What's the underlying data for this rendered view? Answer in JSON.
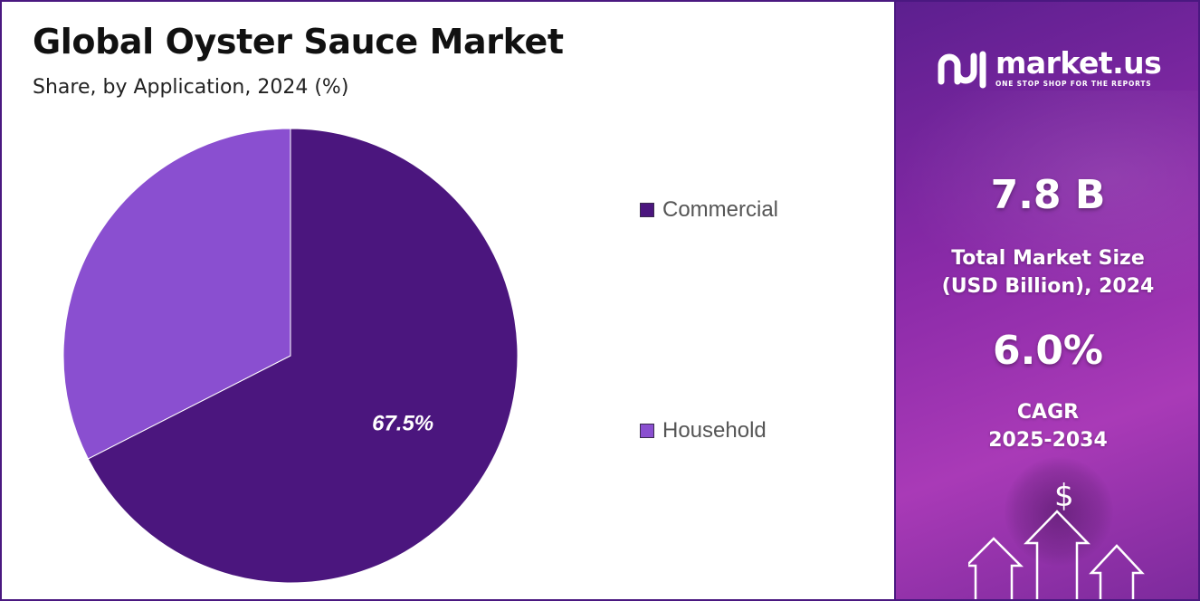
{
  "header": {
    "title": "Global Oyster Sauce Market",
    "subtitle": "Share, by Application, 2024 (%)"
  },
  "chart_data": {
    "type": "pie",
    "categories": [
      "Commercial",
      "Household"
    ],
    "values": [
      67.5,
      32.5
    ],
    "colors": [
      "#4b167e",
      "#8a4fd0"
    ],
    "data_labels": [
      "67.5%",
      ""
    ],
    "legend_placement": "right"
  },
  "legend": {
    "items": [
      {
        "label": "Commercial",
        "color": "#4b167e"
      },
      {
        "label": "Household",
        "color": "#8a4fd0"
      }
    ]
  },
  "brand": {
    "name": "market.us",
    "tagline": "ONE STOP SHOP FOR THE REPORTS"
  },
  "stats": {
    "market_size_value": "7.8 B",
    "market_size_label_line1": "Total Market Size",
    "market_size_label_line2": "(USD Billion), 2024",
    "cagr_value": "6.0%",
    "cagr_label_line1": "CAGR",
    "cagr_label_line2": "2025-2034"
  },
  "decor": {
    "currency_symbol": "$"
  },
  "colors": {
    "accent_dark": "#4a1880",
    "panel_gradient_start": "#5c1f8f",
    "panel_gradient_end": "#a93ab7"
  }
}
